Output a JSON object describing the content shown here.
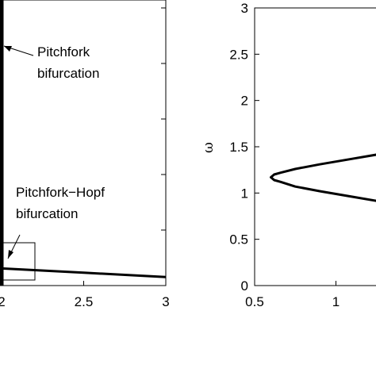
{
  "chart_data": [
    {
      "type": "line",
      "title": "",
      "xlabel": "",
      "ylabel": "",
      "xlim": [
        2,
        3
      ],
      "x_ticks": [
        2,
        2.5,
        3
      ],
      "x_tick_labels": [
        "2",
        "2.5",
        "3"
      ],
      "series": [
        {
          "x": [
            2.0,
            2.0
          ],
          "y": [
            1.0,
            0.0
          ]
        },
        {
          "x": [
            2.0,
            2.5,
            3.0
          ],
          "y": [
            0.06,
            0.045,
            0.03
          ]
        }
      ],
      "annotations": [
        {
          "lines": [
            "Pitchfork",
            "bifurcation"
          ]
        },
        {
          "lines": [
            "Pitchfork−Hopf",
            "bifurcation"
          ]
        }
      ]
    },
    {
      "type": "line",
      "title": "",
      "xlabel": "",
      "ylabel": "ω",
      "xlim": [
        0.5,
        1.5
      ],
      "ylim": [
        0,
        3
      ],
      "x_ticks": [
        0.5,
        1
      ],
      "x_tick_labels": [
        "0.5",
        "1"
      ],
      "y_ticks": [
        0,
        0.5,
        1,
        1.5,
        2,
        2.5,
        3
      ],
      "y_tick_labels": [
        "0",
        "0.5",
        "1",
        "1.5",
        "2",
        "2.5",
        "3"
      ],
      "series": [
        {
          "x": [
            1.5,
            1.3,
            1.1,
            0.9,
            0.75,
            0.66,
            0.62,
            0.6,
            0.62,
            0.66,
            0.75,
            0.9,
            1.1,
            1.3,
            1.5
          ],
          "y": [
            1.52,
            1.43,
            1.37,
            1.31,
            1.26,
            1.22,
            1.2,
            1.17,
            1.14,
            1.12,
            1.07,
            1.02,
            0.96,
            0.9,
            0.84
          ]
        }
      ]
    }
  ]
}
